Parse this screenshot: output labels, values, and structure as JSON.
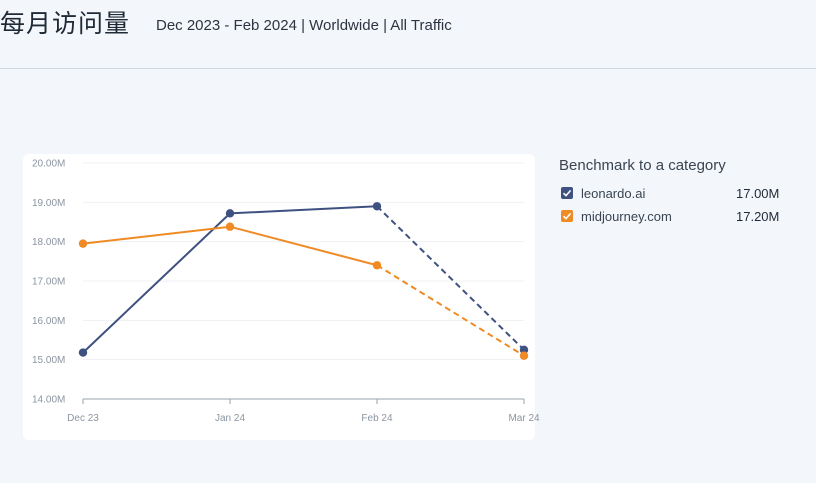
{
  "header": {
    "title": "每月访问量",
    "subtitle": "Dec 2023 - Feb 2024 | Worldwide | All Traffic"
  },
  "legend": {
    "title": "Benchmark to a category",
    "items": [
      {
        "label": "leonardo.ai",
        "value": "17.00M",
        "color": "#3f5180",
        "checked": true
      },
      {
        "label": "midjourney.com",
        "value": "17.20M",
        "color": "#f08a24",
        "checked": true
      }
    ]
  },
  "chart_data": {
    "type": "line",
    "categories": [
      "Dec 23",
      "Jan 24",
      "Feb 24",
      "Mar 24"
    ],
    "ylim": [
      14.0,
      20.0
    ],
    "yticks": [
      "14.00M",
      "15.00M",
      "16.00M",
      "17.00M",
      "18.00M",
      "19.00M",
      "20.00M"
    ],
    "grid": true,
    "projected_last_point": true,
    "series": [
      {
        "name": "leonardo.ai",
        "color": "#3f5180",
        "values": [
          15.18,
          18.72,
          18.9,
          15.25
        ]
      },
      {
        "name": "midjourney.com",
        "color": "#f08a24",
        "values": [
          17.95,
          18.38,
          17.4,
          15.1
        ]
      }
    ]
  }
}
